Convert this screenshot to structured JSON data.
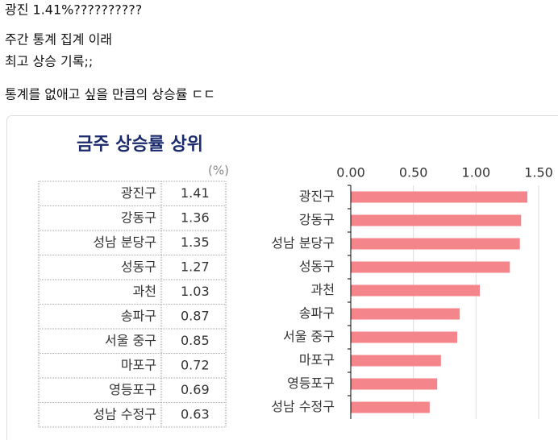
{
  "post": {
    "lines": [
      "광진 1.41%??????????",
      "주간 통계 집계 이래",
      "최고 상승 기록;;",
      "통계를 없애고 싶을 만큼의 상승률 ㄷㄷ"
    ]
  },
  "chart_data": {
    "type": "bar",
    "orientation": "horizontal",
    "title": "금주 상승률 상위",
    "unit": "(%)",
    "categories": [
      "광진구",
      "강동구",
      "성남 분당구",
      "성동구",
      "과천",
      "송파구",
      "서울 중구",
      "마포구",
      "영등포구",
      "성남 수정구"
    ],
    "values": [
      1.41,
      1.36,
      1.35,
      1.27,
      1.03,
      0.87,
      0.85,
      0.72,
      0.69,
      0.63
    ],
    "color": "#f4858a",
    "xlim": [
      0,
      1.5
    ],
    "xticks": [
      {
        "value": 0,
        "label": "0.00"
      },
      {
        "value": 0.5,
        "label": "0.50"
      },
      {
        "value": 1,
        "label": "1.00"
      },
      {
        "value": 1.5,
        "label": "1.50"
      }
    ],
    "grid": true
  }
}
